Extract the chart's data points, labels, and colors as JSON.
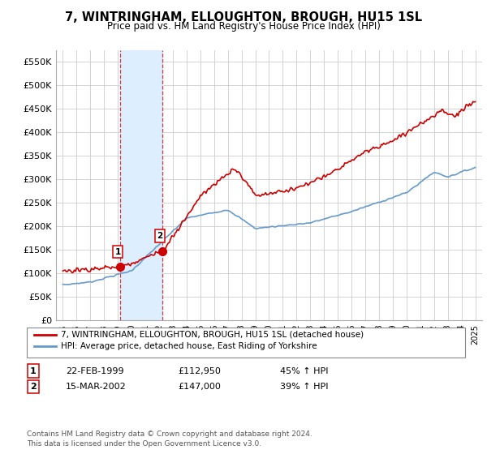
{
  "title": "7, WINTRINGHAM, ELLOUGHTON, BROUGH, HU15 1SL",
  "subtitle": "Price paid vs. HM Land Registry's House Price Index (HPI)",
  "sale1_date": 1999.14,
  "sale1_price": 112950,
  "sale1_label": "1",
  "sale1_text": "22-FEB-1999",
  "sale1_amount": "£112,950",
  "sale1_hpi": "45% ↑ HPI",
  "sale2_date": 2002.21,
  "sale2_price": 147000,
  "sale2_label": "2",
  "sale2_text": "15-MAR-2002",
  "sale2_amount": "£147,000",
  "sale2_hpi": "39% ↑ HPI",
  "legend_property": "7, WINTRINGHAM, ELLOUGHTON, BROUGH, HU15 1SL (detached house)",
  "legend_hpi": "HPI: Average price, detached house, East Riding of Yorkshire",
  "footer": "Contains HM Land Registry data © Crown copyright and database right 2024.\nThis data is licensed under the Open Government Licence v3.0.",
  "property_color": "#cc0000",
  "hpi_color": "#6699cc",
  "shade_color": "#ddeeff",
  "grid_color": "#cccccc",
  "ylim": [
    0,
    575000
  ],
  "xlim": [
    1994.5,
    2025.5
  ],
  "yticks": [
    0,
    50000,
    100000,
    150000,
    200000,
    250000,
    300000,
    350000,
    400000,
    450000,
    500000,
    550000
  ],
  "ytick_labels": [
    "£0",
    "£50K",
    "£100K",
    "£150K",
    "£200K",
    "£250K",
    "£300K",
    "£350K",
    "£400K",
    "£450K",
    "£500K",
    "£550K"
  ],
  "xticks": [
    1995,
    1996,
    1997,
    1998,
    1999,
    2000,
    2001,
    2002,
    2003,
    2004,
    2005,
    2006,
    2007,
    2008,
    2009,
    2010,
    2011,
    2012,
    2013,
    2014,
    2015,
    2016,
    2017,
    2018,
    2019,
    2020,
    2021,
    2022,
    2023,
    2024,
    2025
  ]
}
